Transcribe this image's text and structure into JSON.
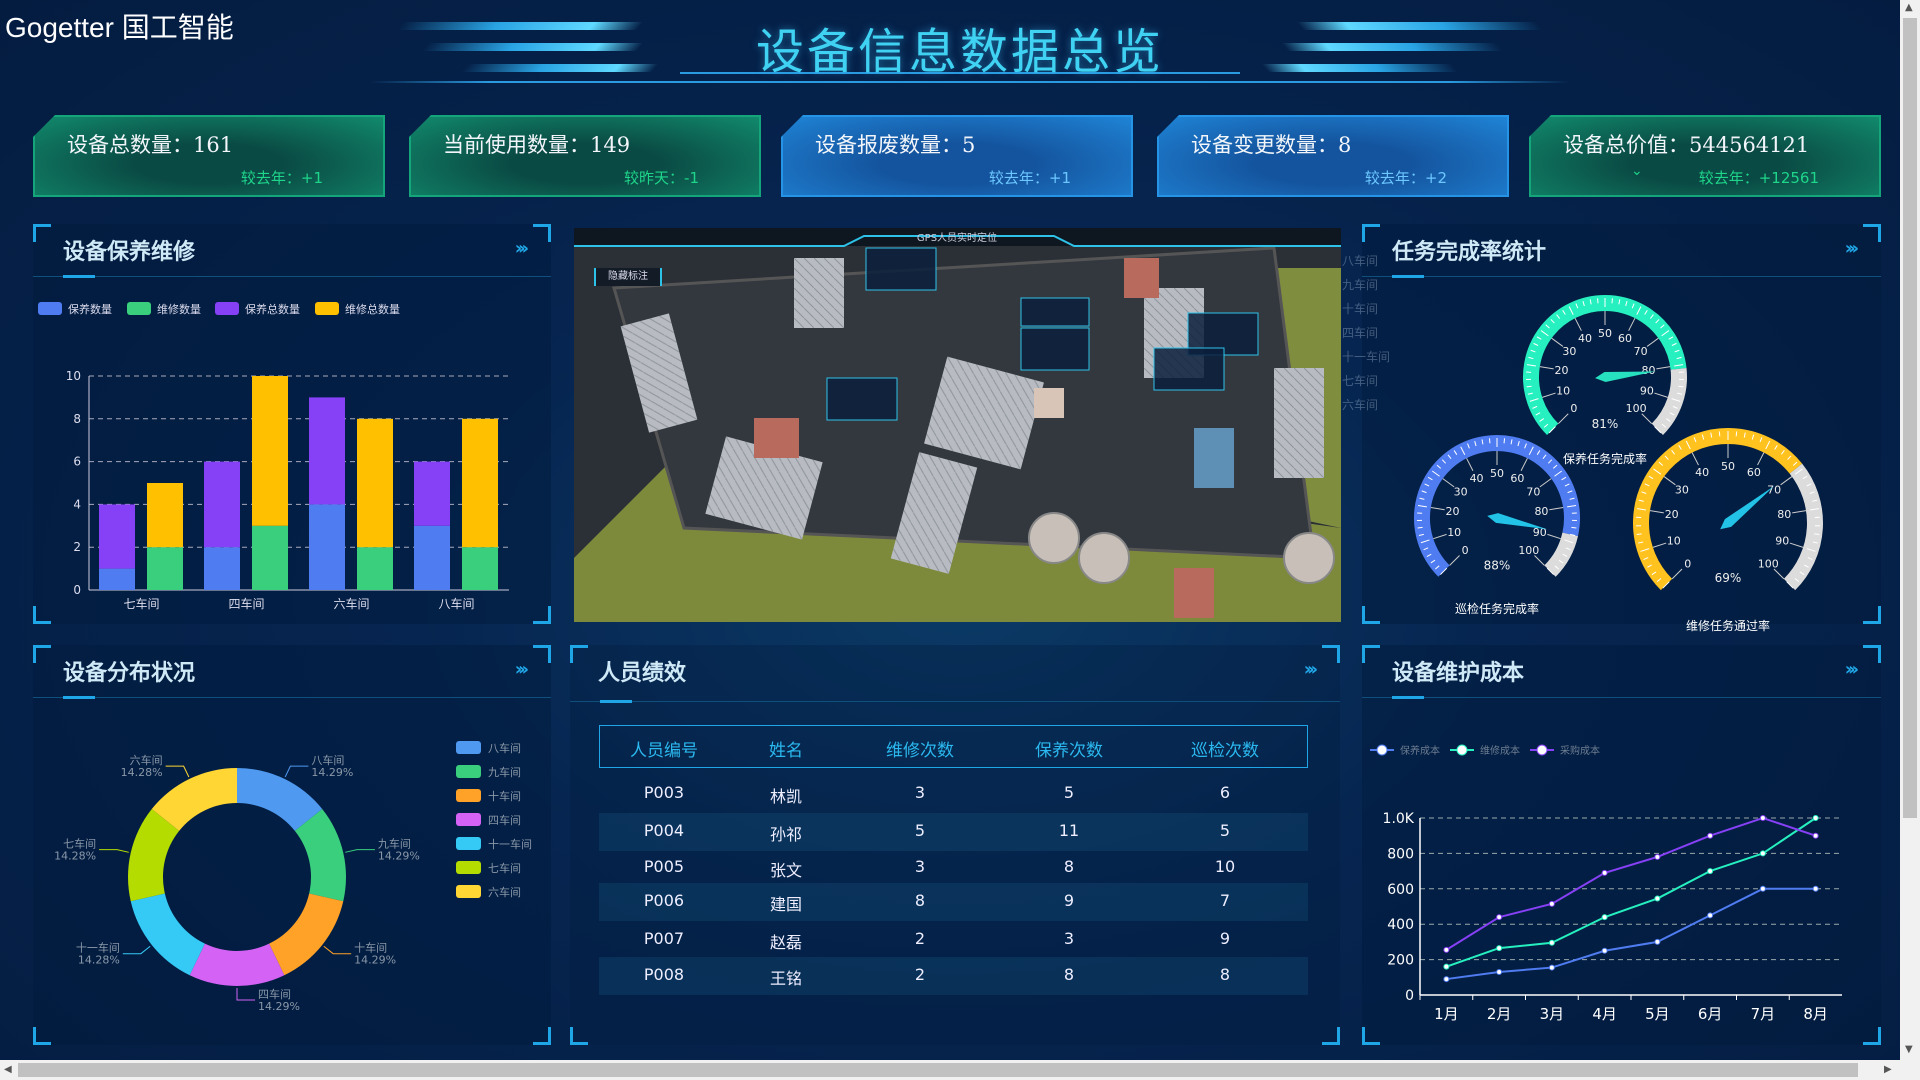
{
  "logo": "Gogetter 国工智能",
  "title": "设备信息数据总览",
  "kpis": [
    {
      "label": "设备总数量：161",
      "compare": "较去年：+1",
      "theme": "green"
    },
    {
      "label": "当前使用数量：149",
      "compare": "较昨天：-1",
      "theme": "green"
    },
    {
      "label": "设备报废数量：5",
      "compare": "较去年：+1",
      "theme": "blue"
    },
    {
      "label": "设备变更数量：8",
      "compare": "较去年：+2",
      "theme": "blue"
    },
    {
      "label": "设备总价值：544564121",
      "compare": "较去年：+12561",
      "theme": "green"
    }
  ],
  "colors": {
    "accent": "#1fa6e6",
    "title": "#3fd2f2",
    "green_card": "#118a6c",
    "blue_card": "#1f84d6"
  },
  "panels": {
    "maintenance": {
      "title": "设备保养维修",
      "more_icon": "chevron-double-right-icon"
    },
    "tasks": {
      "title": "任务完成率统计"
    },
    "distribution": {
      "title": "设备分布状况"
    },
    "staff": {
      "title": "人员绩效"
    },
    "cost": {
      "title": "设备维护成本"
    }
  },
  "map": {
    "header": "GPS人员实时定位",
    "toggle": "隐藏标注"
  },
  "ghost_list": [
    "八车间",
    "九车间",
    "十车间",
    "四车间",
    "十一车间",
    "七车间",
    "六车间"
  ],
  "staff_table": {
    "columns": [
      "人员编号",
      "姓名",
      "维修次数",
      "保养次数",
      "巡检次数"
    ],
    "rows": [
      [
        "P003",
        "林凯",
        "3",
        "5",
        "6"
      ],
      [
        "P004",
        "孙祁",
        "5",
        "11",
        "5"
      ],
      [
        "P005",
        "张文",
        "3",
        "8",
        "10"
      ],
      [
        "P006",
        "建国",
        "8",
        "9",
        "7"
      ],
      [
        "P007",
        "赵磊",
        "2",
        "3",
        "9"
      ],
      [
        "P008",
        "王铭",
        "2",
        "8",
        "8"
      ]
    ]
  },
  "chart_data": [
    {
      "type": "bar",
      "stacked": true,
      "categories": [
        "七车间",
        "四车间",
        "六车间",
        "八车间"
      ],
      "series": [
        {
          "name": "保养数量",
          "stack": "保养",
          "color": "#4f7cf0",
          "values": [
            1,
            2,
            4,
            3
          ]
        },
        {
          "name": "维修数量",
          "stack": "维修",
          "color": "#3acf7c",
          "values": [
            2,
            3,
            2,
            2
          ]
        },
        {
          "name": "保养总数量",
          "stack": "保养",
          "color": "#8640f5",
          "values": [
            3,
            4,
            5,
            3
          ]
        },
        {
          "name": "维修总数量",
          "stack": "维修",
          "color": "#ffc000",
          "values": [
            3,
            7,
            6,
            6
          ]
        }
      ],
      "yticks": [
        0,
        2,
        4,
        6,
        8,
        10
      ],
      "ylim": [
        0,
        10
      ],
      "grid": true,
      "legend": "top-left"
    },
    {
      "type": "gauge",
      "gauges": [
        {
          "name": "保养任务完成率",
          "value": 81,
          "label": "81%",
          "color": "#26f0bf"
        },
        {
          "name": "巡检任务完成率",
          "value": 88,
          "label": "88%",
          "color": "#4f7cf0"
        },
        {
          "name": "维修任务通过率",
          "value": 69,
          "label": "69%",
          "color": "#ffc21e"
        }
      ],
      "ticks": [
        0,
        10,
        20,
        30,
        40,
        50,
        60,
        70,
        80,
        90,
        100
      ],
      "range": [
        0,
        100
      ]
    },
    {
      "type": "pie",
      "donut": true,
      "slices": [
        {
          "name": "八车间",
          "value": 1,
          "label": "14.29%",
          "color": "#4f9af0"
        },
        {
          "name": "九车间",
          "value": 1,
          "label": "14.29%",
          "color": "#3acf7c"
        },
        {
          "name": "十车间",
          "value": 1,
          "label": "14.29%",
          "color": "#ffa227"
        },
        {
          "name": "四车间",
          "value": 1,
          "label": "14.29%",
          "color": "#d362f5"
        },
        {
          "name": "十一车间",
          "value": 1,
          "label": "14.28%",
          "color": "#35c9f5"
        },
        {
          "name": "七车间",
          "value": 1,
          "label": "14.28%",
          "color": "#b4dc00"
        },
        {
          "name": "六车间",
          "value": 1,
          "label": "14.28%",
          "color": "#ffd633"
        }
      ],
      "legend": "right"
    },
    {
      "type": "line",
      "categories": [
        "1月",
        "2月",
        "3月",
        "4月",
        "5月",
        "6月",
        "7月",
        "8月"
      ],
      "series": [
        {
          "name": "保养成本",
          "color": "#4f7cf0",
          "values": [
            90,
            130,
            155,
            250,
            300,
            450,
            600,
            600
          ]
        },
        {
          "name": "维修成本",
          "color": "#26f0bf",
          "values": [
            160,
            265,
            295,
            440,
            545,
            700,
            800,
            1000
          ]
        },
        {
          "name": "采购成本",
          "color": "#8640f5",
          "values": [
            255,
            440,
            515,
            690,
            780,
            900,
            1000,
            900
          ]
        }
      ],
      "yticks": [
        "0",
        "200",
        "400",
        "600",
        "800",
        "1.0K"
      ],
      "ylim": [
        0,
        1000
      ],
      "grid": true,
      "legend": "top-left"
    }
  ]
}
